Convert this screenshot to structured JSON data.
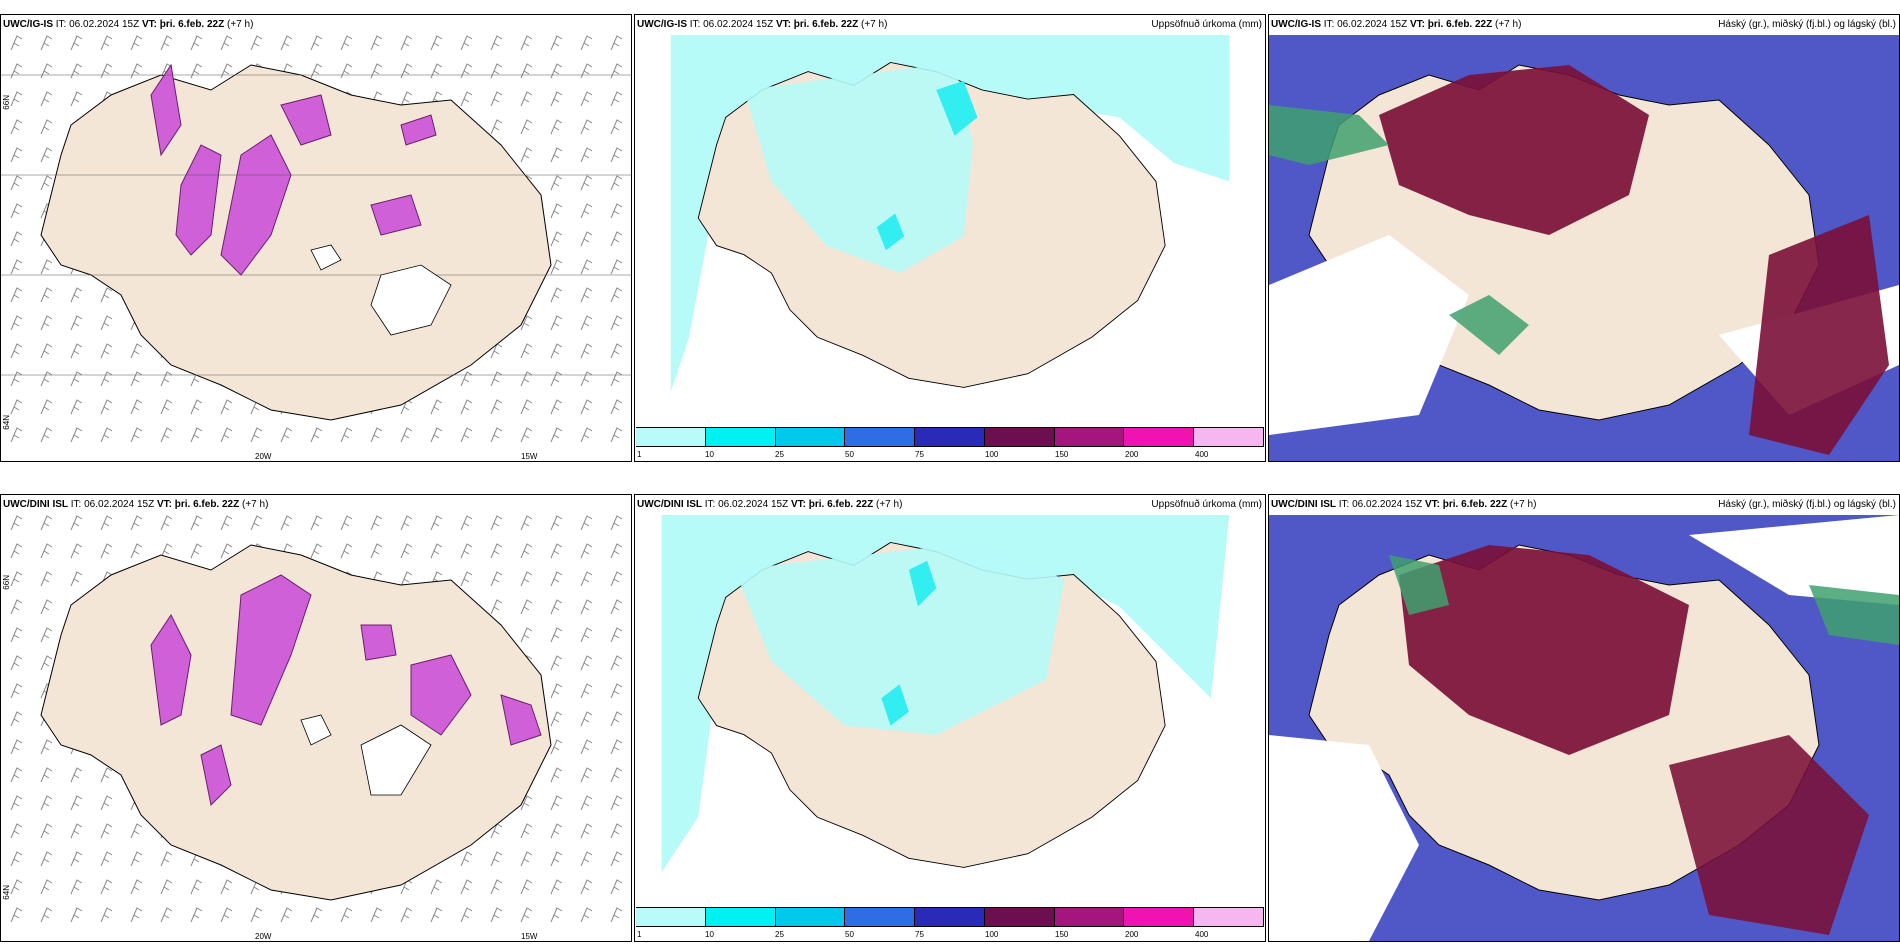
{
  "rows": [
    {
      "model": "UWC/IG-IS",
      "it_label": "IT:",
      "it_value": "06.02.2024 15Z",
      "vt_label": "VT:",
      "vt_value": "þri. 6.feb. 22Z",
      "lead": "(+7 h)",
      "lon_labels": [
        "20W",
        "15W"
      ],
      "lat_labels": [
        "66N",
        "64N"
      ]
    },
    {
      "model": "UWC/DINI ISL",
      "it_label": "IT:",
      "it_value": "06.02.2024 15Z",
      "vt_label": "VT:",
      "vt_value": "þri. 6.feb. 22Z",
      "lead": "(+7 h)",
      "lon_labels": [
        "20W",
        "15W"
      ],
      "lat_labels": [
        "66N",
        "64N"
      ]
    }
  ],
  "precip_title": "Uppsöfnuð úrkoma (mm)",
  "cloud_title": "Háský (gr.), miðský (fj.bl.) og lágský (bl.)",
  "colorbar": {
    "ticks": [
      "1",
      "10",
      "25",
      "50",
      "75",
      "100",
      "150",
      "200",
      "400"
    ],
    "colors": [
      "#b8fbf8",
      "#00f1f0",
      "#00c9ec",
      "#2f6de6",
      "#2a2ab8",
      "#6b0f4f",
      "#a4157e",
      "#f013b0",
      "#f6b6f0"
    ]
  },
  "colors": {
    "land": "#f4e6d6",
    "precip_light": "#b6fbf8",
    "precip_mid": "#33eef0",
    "snow": "#d060d8",
    "cloud_high": "#7a1038",
    "cloud_mid": "#5058c8",
    "cloud_low": "#40a070"
  }
}
